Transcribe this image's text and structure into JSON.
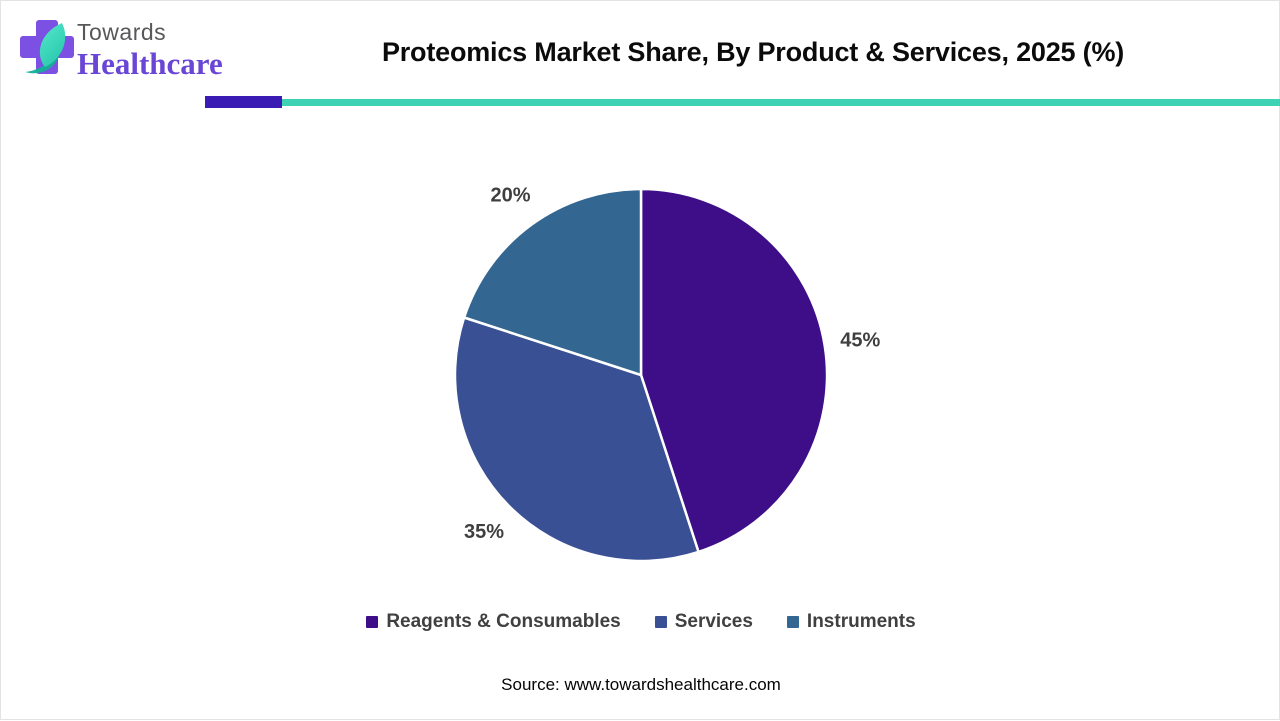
{
  "logo": {
    "towards": "Towards",
    "healthcare": "Healthcare",
    "cross_color": "#7C50E2",
    "leaf_light": "#55E8CB",
    "leaf_dark": "#2BC9AE",
    "swoosh_color": "#12B096"
  },
  "header": {
    "title": "Proteomics Market Share, By Product & Services, 2025 (%)",
    "underline_purple": "#3A1CB4",
    "underline_teal": "#3DD2B3"
  },
  "chart_data": {
    "type": "pie",
    "title": "Proteomics Market Share, By Product & Services, 2025 (%)",
    "unit": "%",
    "start_angle_deg": 0,
    "direction": "clockwise",
    "data_label_color": "#3F3F3F",
    "legend_position": "bottom",
    "slices": [
      {
        "label": "Reagents & Consumables",
        "value": 45,
        "data_label": "45%",
        "color": "#3E0E88"
      },
      {
        "label": "Services",
        "value": 35,
        "data_label": "35%",
        "color": "#3A5094"
      },
      {
        "label": "Instruments",
        "value": 20,
        "data_label": "20%",
        "color": "#336691"
      }
    ]
  },
  "footer": {
    "source": "Source: www.towardshealthcare.com"
  }
}
